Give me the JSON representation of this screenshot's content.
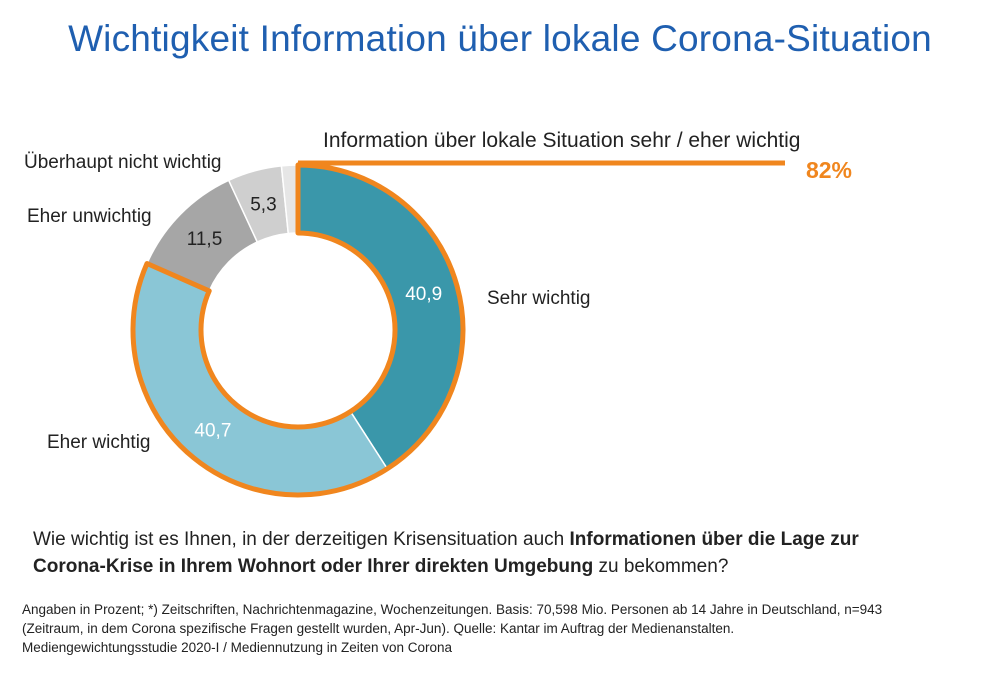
{
  "title": "Wichtigkeit Information über lokale Corona-Situation",
  "highlight": {
    "label": "Information über lokale Situation sehr / eher wichtig",
    "value": "82%",
    "color": "#f0861e"
  },
  "chart_data": {
    "type": "pie",
    "donut": true,
    "unit": "Prozent",
    "slices": [
      {
        "name": "Sehr wichtig",
        "value": 40.9,
        "value_label": "40,9",
        "color": "#3a97aa",
        "highlighted": true
      },
      {
        "name": "Eher wichtig",
        "value": 40.7,
        "value_label": "40,7",
        "color": "#8ac6d6",
        "highlighted": true
      },
      {
        "name": "Eher unwichtig",
        "value": 11.5,
        "value_label": "11,5",
        "color": "#a6a6a6",
        "highlighted": false
      },
      {
        "name": "Überhaupt nicht wichtig",
        "value": 5.3,
        "value_label": "5,3",
        "color": "#cfcfcf",
        "highlighted": false
      },
      {
        "name": "",
        "value": 1.6,
        "value_label": "",
        "color": "#e6e6e6",
        "highlighted": false
      }
    ]
  },
  "question": {
    "part1": "Wie wichtig ist es Ihnen, in der derzeitigen Krisensituation auch ",
    "bold": "Informationen über die Lage zur Corona-Krise in Ihrem Wohnort oder Ihrer direkten Umgebung",
    "part2": " zu bekommen?"
  },
  "footnote": {
    "line1": "Angaben in Prozent; *) Zeitschriften, Nachrichtenmagazine, Wochenzeitungen. Basis: 70,598 Mio. Personen ab 14 Jahre in Deutschland, n=943",
    "line2": "(Zeitraum, in dem Corona spezifische Fragen gestellt wurden, Apr-Jun). Quelle: Kantar im Auftrag der Medienanstalten.",
    "line3": "Mediengewichtungsstudie 2020-I / Mediennutzung in Zeiten von Corona"
  }
}
